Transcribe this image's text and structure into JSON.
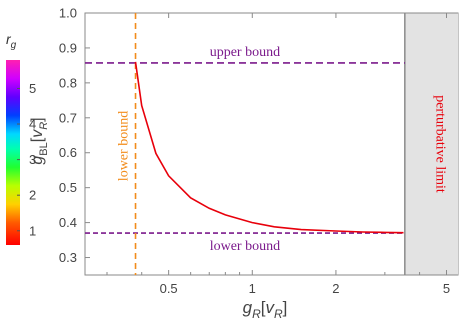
{
  "chart_data": {
    "type": "line",
    "xlabel": "g_R[v_R]",
    "ylabel": "g_BL[v_R]",
    "x_scale": "log",
    "xlim": [
      0.25,
      5.5
    ],
    "ylim": [
      0.25,
      1.0
    ],
    "x_ticks": [
      0.5,
      1,
      2,
      5
    ],
    "x_tick_labels": [
      "0.5",
      "1",
      "2",
      "5"
    ],
    "y_ticks": [
      0.3,
      0.4,
      0.5,
      0.6,
      0.7,
      0.8,
      0.9,
      1.0
    ],
    "y_tick_labels": [
      "0.3",
      "0.4",
      "0.5",
      "0.6",
      "0.7",
      "0.8",
      "0.9",
      "1.0"
    ],
    "series": [
      {
        "color": "#e8000b",
        "x": [
          0.38,
          0.4,
          0.45,
          0.5,
          0.6,
          0.7,
          0.8,
          1.0,
          1.2,
          1.5,
          2.0,
          2.5,
          3.0,
          3.5
        ],
        "y": [
          0.86,
          0.735,
          0.598,
          0.534,
          0.471,
          0.441,
          0.422,
          0.4,
          0.388,
          0.38,
          0.376,
          0.373,
          0.372,
          0.371
        ]
      }
    ],
    "lines": {
      "upper_bound_y": 0.857,
      "lower_bound_y": 0.37,
      "lower_bound_x": 0.38,
      "perturbative_limit_x": 3.54
    },
    "annotations": {
      "upper_bound": "upper bound",
      "lower_bound_horizontal": "lower bound",
      "lower_bound_vertical": "lower bound",
      "perturbative_limit": "perturbative limit"
    },
    "colorbar": {
      "title": "r_g",
      "min": 0.6,
      "max": 5.8,
      "ticks": [
        1,
        2,
        3,
        4,
        5
      ],
      "tick_labels": [
        "1",
        "2",
        "3",
        "4",
        "5"
      ]
    },
    "colors": {
      "curve": "#e8000b",
      "bound": "#7b1a8c",
      "vertical_bound": "#f28c1b",
      "limit_region": "#e3e3e3",
      "limit_text": "#e8000b"
    }
  }
}
